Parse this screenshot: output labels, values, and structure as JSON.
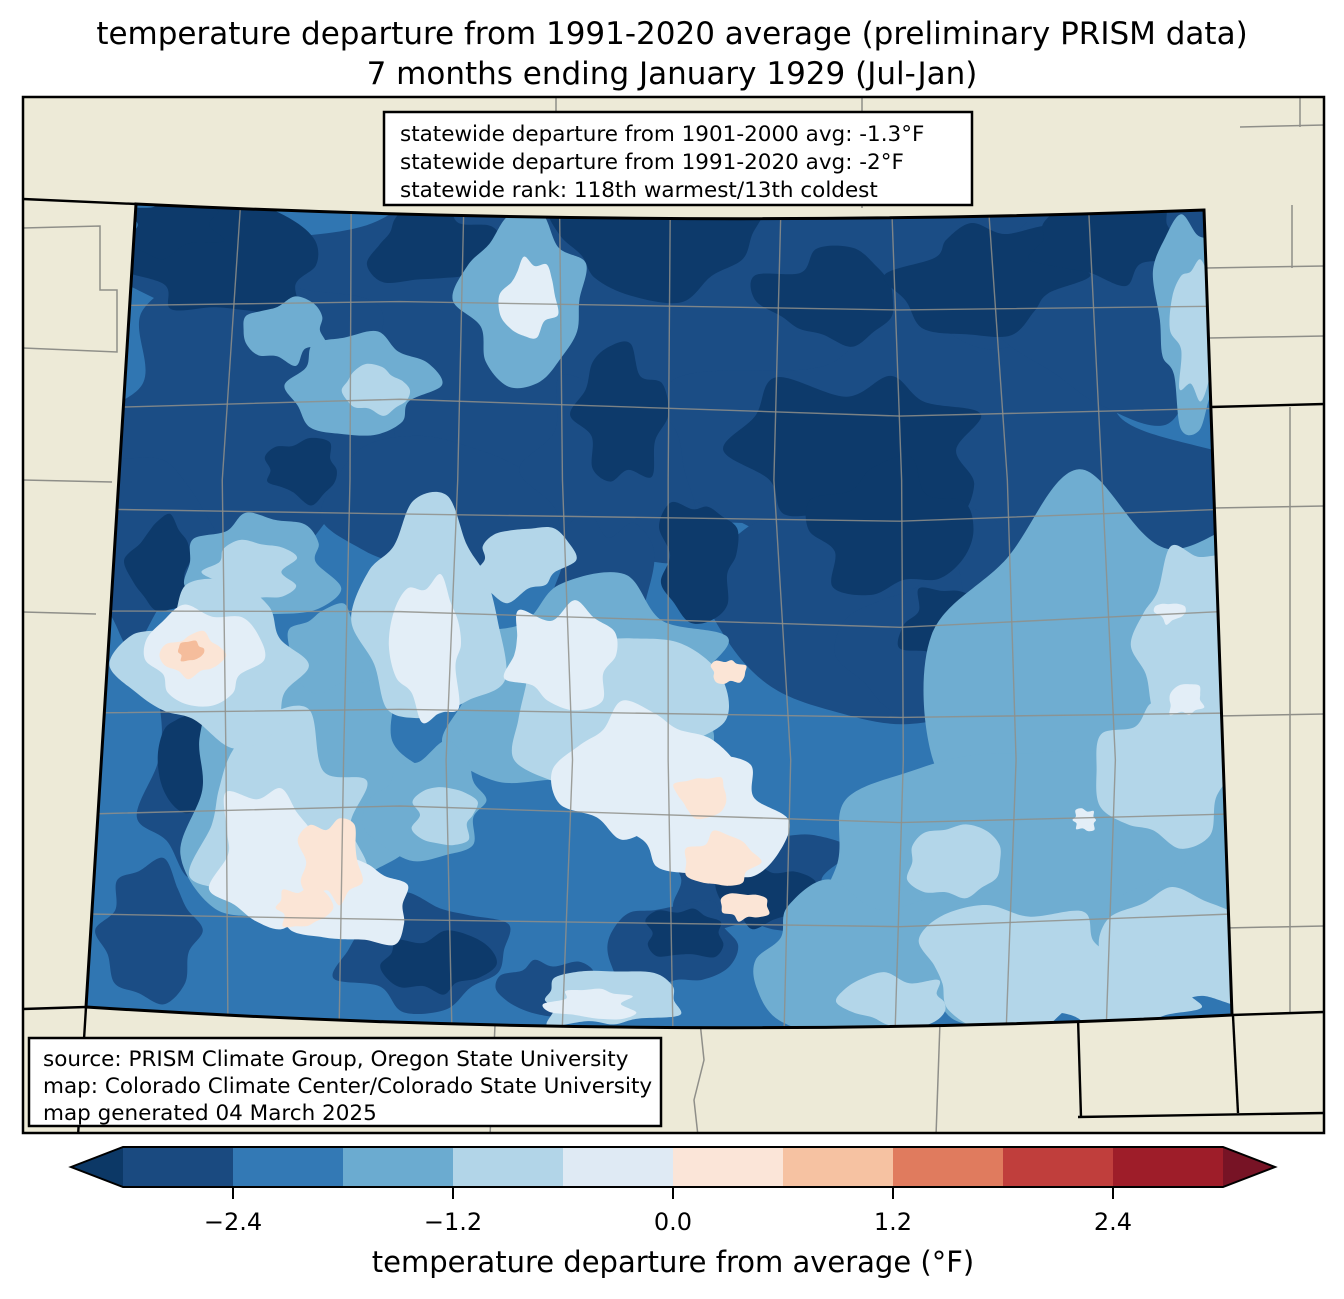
{
  "title": {
    "line1": "temperature departure from 1991-2020 average (preliminary PRISM data)",
    "line2": "7 months ending January 1929 (Jul-Jan)"
  },
  "stats_box": {
    "lines": [
      "statewide departure from 1901-2000 avg: -1.3°F",
      "statewide departure from 1991-2020 avg: -2°F",
      "statewide rank: 118th warmest/13th coldest"
    ]
  },
  "source_box": {
    "lines": [
      "source: PRISM Climate Group, Oregon State University",
      "map: Colorado Climate Center/Colorado State University",
      "map generated 04 March 2025"
    ]
  },
  "colorbar": {
    "label": "temperature departure from average (°F)",
    "tick_labels": [
      "−2.4",
      "−1.2",
      "0.0",
      "1.2",
      "2.4"
    ],
    "tick_values": [
      -2.4,
      -1.2,
      0.0,
      1.2,
      2.4
    ],
    "levels": [
      -3.0,
      -2.4,
      -1.8,
      -1.2,
      -0.6,
      0.0,
      0.6,
      1.2,
      1.8,
      2.4,
      3.0
    ],
    "segment_colors": [
      "#1a4a80",
      "#3379b5",
      "#6babd0",
      "#b2d5e8",
      "#dfeaf4",
      "#fbe5d8",
      "#f6c2a2",
      "#e07b5e",
      "#c03e3c",
      "#9e1d29"
    ],
    "under_color": "#0c3866",
    "over_color": "#771325"
  },
  "map": {
    "region": "Colorado",
    "background_color": "#edead7",
    "state_border_color": "#000000",
    "county_line_color": "#8f8f89",
    "palette": {
      "under": "#0d3a6b",
      "b1": "#1b4d85",
      "b2": "#3076b2",
      "b3": "#6fadd1",
      "b4": "#b3d6e9",
      "b5": "#e3eef7",
      "w1": "#fbe5d6",
      "w2": "#f5bd9c"
    }
  }
}
